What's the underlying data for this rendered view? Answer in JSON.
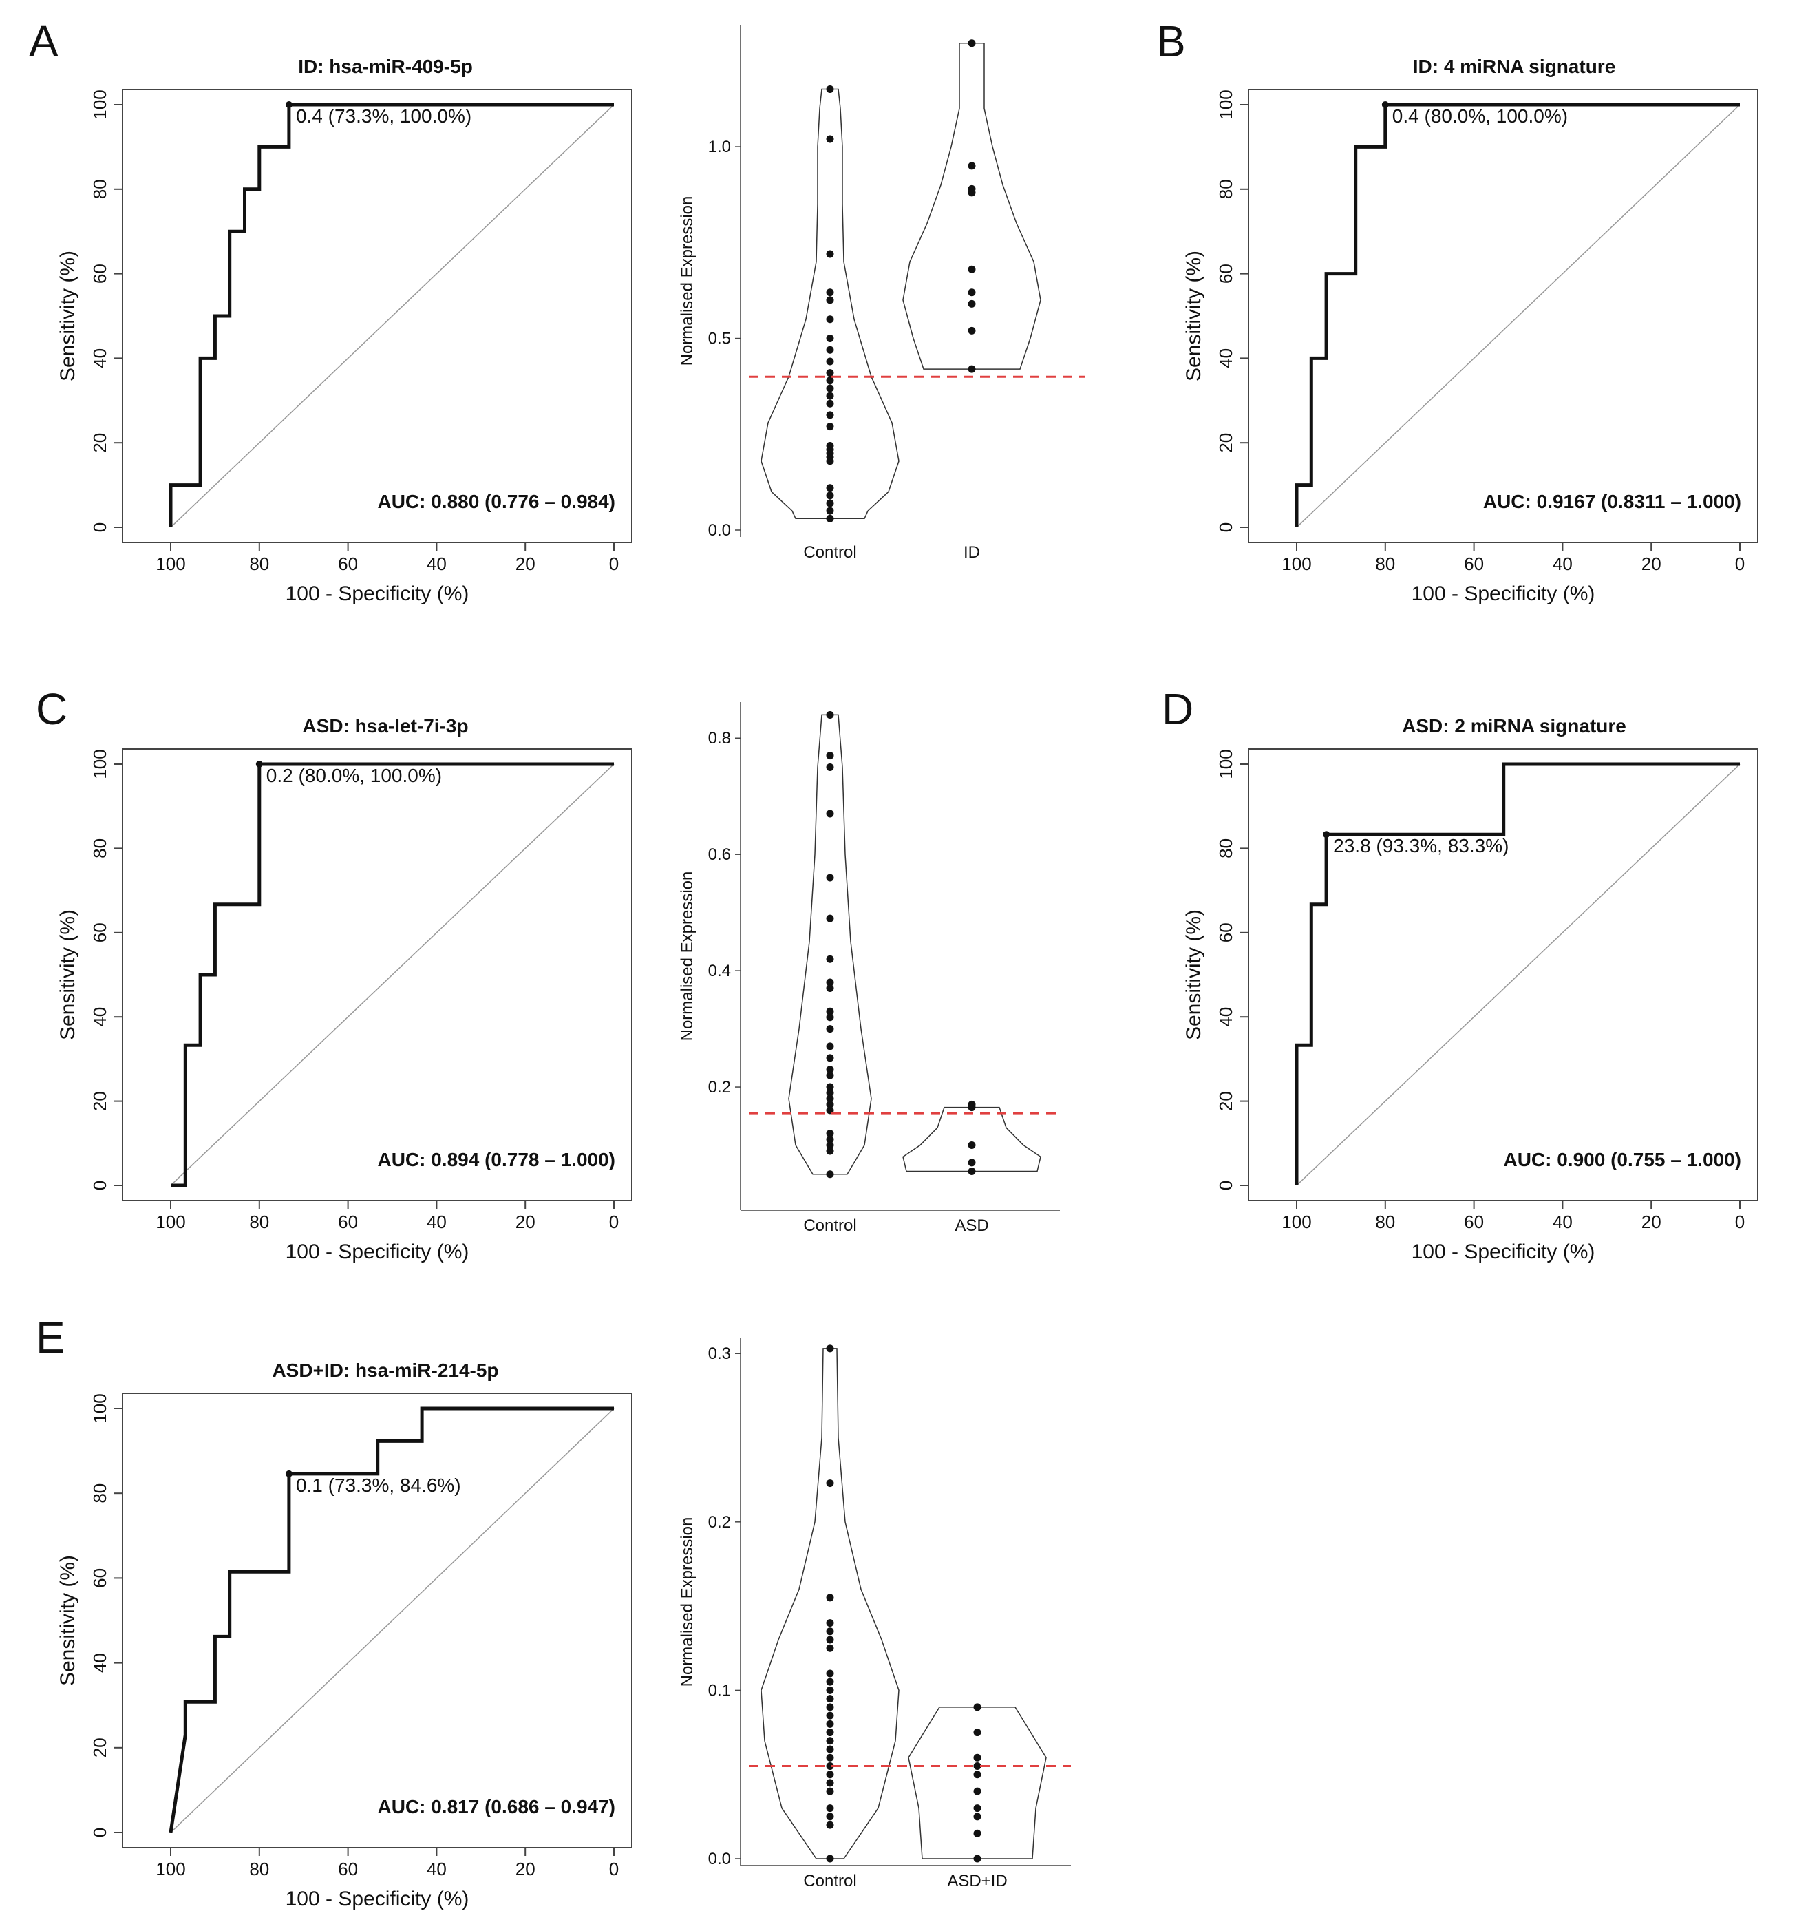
{
  "colors": {
    "ink": "#111111",
    "diag": "#999999",
    "threshold": "#e04040",
    "violin": "#333333",
    "axis": "#444444"
  },
  "roc_axis": {
    "xlabel": "100 - Specificity (%)",
    "ylabel": "Sensitivity (%)",
    "xticks": [
      "100",
      "80",
      "60",
      "40",
      "20",
      "0"
    ],
    "yticks": [
      "0",
      "20",
      "40",
      "60",
      "80",
      "100"
    ]
  },
  "violin_axis": {
    "ylabel": "Normalised Expression"
  },
  "chart_data": [
    {
      "panel": "A",
      "type": "line",
      "chart": "roc",
      "title": "ID: hsa-miR-409-5p",
      "auc": "AUC: 0.880 (0.776 – 0.984)",
      "annotation": "0.4 (73.3%, 100.0%)",
      "point": [
        73.3,
        100
      ],
      "curve": [
        [
          100,
          0
        ],
        [
          100,
          10
        ],
        [
          93.3,
          10
        ],
        [
          93.3,
          40
        ],
        [
          90,
          40
        ],
        [
          90,
          50
        ],
        [
          86.7,
          50
        ],
        [
          86.7,
          70
        ],
        [
          83.3,
          70
        ],
        [
          83.3,
          80
        ],
        [
          80,
          80
        ],
        [
          80,
          90
        ],
        [
          73.3,
          90
        ],
        [
          73.3,
          100
        ],
        [
          0,
          100
        ]
      ]
    },
    {
      "panel": "A",
      "type": "scatter",
      "chart": "violin",
      "categories": [
        "Control",
        "ID"
      ],
      "ylim": [
        0,
        1.3
      ],
      "yticks": [
        "0.0",
        "0.5",
        "1.0"
      ],
      "ytick_values": [
        0,
        0.5,
        1.0
      ],
      "threshold": 0.4,
      "groups": [
        {
          "name": "Control",
          "points": [
            1.15,
            1.02,
            0.72,
            0.62,
            0.6,
            0.55,
            0.5,
            0.47,
            0.44,
            0.41,
            0.39,
            0.37,
            0.35,
            0.33,
            0.3,
            0.27,
            0.22,
            0.21,
            0.2,
            0.19,
            0.18,
            0.11,
            0.09,
            0.07,
            0.05,
            0.03
          ],
          "violin": [
            [
              0.03,
              0.5
            ],
            [
              0.05,
              0.55
            ],
            [
              0.1,
              0.85
            ],
            [
              0.18,
              1.0
            ],
            [
              0.28,
              0.9
            ],
            [
              0.4,
              0.6
            ],
            [
              0.55,
              0.35
            ],
            [
              0.7,
              0.2
            ],
            [
              0.85,
              0.18
            ],
            [
              1.0,
              0.18
            ],
            [
              1.1,
              0.15
            ],
            [
              1.15,
              0.12
            ]
          ]
        },
        {
          "name": "ID",
          "points": [
            1.27,
            0.95,
            0.89,
            0.88,
            0.68,
            0.62,
            0.59,
            0.52,
            0.42
          ],
          "violin": [
            [
              0.42,
              0.7
            ],
            [
              0.5,
              0.85
            ],
            [
              0.6,
              1.0
            ],
            [
              0.7,
              0.9
            ],
            [
              0.8,
              0.65
            ],
            [
              0.9,
              0.45
            ],
            [
              1.0,
              0.3
            ],
            [
              1.1,
              0.18
            ],
            [
              1.2,
              0.18
            ],
            [
              1.27,
              0.18
            ]
          ]
        }
      ]
    },
    {
      "panel": "B",
      "type": "line",
      "chart": "roc",
      "title": "ID: 4 miRNA signature",
      "auc": "AUC: 0.9167 (0.8311 – 1.000)",
      "annotation": "0.4 (80.0%, 100.0%)",
      "point": [
        80,
        100
      ],
      "curve": [
        [
          100,
          0
        ],
        [
          100,
          10
        ],
        [
          96.7,
          10
        ],
        [
          96.7,
          40
        ],
        [
          93.3,
          40
        ],
        [
          93.3,
          60
        ],
        [
          86.7,
          60
        ],
        [
          86.7,
          90
        ],
        [
          80,
          90
        ],
        [
          80,
          100
        ],
        [
          0,
          100
        ]
      ]
    },
    {
      "panel": "C",
      "type": "line",
      "chart": "roc",
      "title": "ASD: hsa-let-7i-3p",
      "auc": "AUC: 0.894 (0.778 – 1.000)",
      "annotation": "0.2 (80.0%, 100.0%)",
      "point": [
        80,
        100
      ],
      "curve": [
        [
          100,
          0
        ],
        [
          96.7,
          0
        ],
        [
          96.7,
          33.3
        ],
        [
          93.3,
          33.3
        ],
        [
          93.3,
          50
        ],
        [
          90,
          50
        ],
        [
          90,
          66.7
        ],
        [
          80,
          66.7
        ],
        [
          80,
          100
        ],
        [
          0,
          100
        ]
      ]
    },
    {
      "panel": "C",
      "type": "scatter",
      "chart": "violin",
      "categories": [
        "Control",
        "ASD"
      ],
      "ylim": [
        0.0,
        0.85
      ],
      "yticks": [
        "0.2",
        "0.4",
        "0.6",
        "0.8"
      ],
      "ytick_values": [
        0.2,
        0.4,
        0.6,
        0.8
      ],
      "threshold": 0.155,
      "groups": [
        {
          "name": "Control",
          "points": [
            0.84,
            0.77,
            0.75,
            0.67,
            0.56,
            0.49,
            0.42,
            0.38,
            0.37,
            0.33,
            0.32,
            0.3,
            0.27,
            0.25,
            0.23,
            0.22,
            0.2,
            0.19,
            0.18,
            0.17,
            0.16,
            0.12,
            0.11,
            0.1,
            0.09,
            0.05
          ],
          "violin": [
            [
              0.05,
              0.25
            ],
            [
              0.1,
              0.5
            ],
            [
              0.18,
              0.6
            ],
            [
              0.3,
              0.45
            ],
            [
              0.45,
              0.3
            ],
            [
              0.6,
              0.22
            ],
            [
              0.75,
              0.18
            ],
            [
              0.84,
              0.12
            ]
          ]
        },
        {
          "name": "ASD",
          "points": [
            0.17,
            0.165,
            0.1,
            0.07,
            0.055
          ],
          "violin": [
            [
              0.055,
              0.95
            ],
            [
              0.08,
              1.0
            ],
            [
              0.1,
              0.75
            ],
            [
              0.13,
              0.5
            ],
            [
              0.165,
              0.4
            ]
          ]
        }
      ]
    },
    {
      "panel": "D",
      "type": "line",
      "chart": "roc",
      "title": "ASD: 2 miRNA signature",
      "auc": "AUC: 0.900 (0.755 – 1.000)",
      "annotation": "23.8 (93.3%, 83.3%)",
      "point": [
        93.3,
        83.3
      ],
      "curve": [
        [
          100,
          0
        ],
        [
          100,
          33.3
        ],
        [
          96.7,
          33.3
        ],
        [
          96.7,
          66.7
        ],
        [
          93.3,
          66.7
        ],
        [
          93.3,
          83.3
        ],
        [
          53.3,
          83.3
        ],
        [
          53.3,
          100
        ],
        [
          0,
          100
        ]
      ]
    },
    {
      "panel": "E",
      "type": "line",
      "chart": "roc",
      "title": "ASD+ID: hsa-miR-214-5p",
      "auc": "AUC: 0.817 (0.686 – 0.947)",
      "annotation": "0.1 (73.3%, 84.6%)",
      "point": [
        73.3,
        84.6
      ],
      "curve": [
        [
          100,
          0
        ],
        [
          96.7,
          23
        ],
        [
          96.7,
          30.8
        ],
        [
          90,
          30.8
        ],
        [
          90,
          46.2
        ],
        [
          86.7,
          46.2
        ],
        [
          86.7,
          61.5
        ],
        [
          73.3,
          61.5
        ],
        [
          73.3,
          84.6
        ],
        [
          53.3,
          84.6
        ],
        [
          53.3,
          92.3
        ],
        [
          43.3,
          92.3
        ],
        [
          43.3,
          100
        ],
        [
          0,
          100
        ]
      ]
    },
    {
      "panel": "E",
      "type": "scatter",
      "chart": "violin",
      "categories": [
        "Control",
        "ASD+ID"
      ],
      "ylim": [
        0,
        0.305
      ],
      "yticks": [
        "0.0",
        "0.1",
        "0.2",
        "0.3"
      ],
      "ytick_values": [
        0,
        0.1,
        0.2,
        0.3
      ],
      "threshold": 0.055,
      "groups": [
        {
          "name": "Control",
          "points": [
            0.303,
            0.223,
            0.155,
            0.14,
            0.135,
            0.13,
            0.125,
            0.11,
            0.105,
            0.1,
            0.095,
            0.09,
            0.085,
            0.08,
            0.075,
            0.07,
            0.065,
            0.06,
            0.055,
            0.05,
            0.045,
            0.04,
            0.03,
            0.025,
            0.02,
            0.0
          ],
          "violin": [
            [
              0.0,
              0.2
            ],
            [
              0.03,
              0.7
            ],
            [
              0.07,
              0.95
            ],
            [
              0.1,
              1.0
            ],
            [
              0.13,
              0.75
            ],
            [
              0.16,
              0.45
            ],
            [
              0.2,
              0.22
            ],
            [
              0.25,
              0.12
            ],
            [
              0.303,
              0.1
            ]
          ]
        },
        {
          "name": "ASD+ID",
          "points": [
            0.09,
            0.075,
            0.06,
            0.055,
            0.05,
            0.04,
            0.03,
            0.025,
            0.015,
            0.0
          ],
          "violin": [
            [
              0.0,
              0.8
            ],
            [
              0.03,
              0.85
            ],
            [
              0.06,
              1.0
            ],
            [
              0.09,
              0.55
            ]
          ]
        }
      ]
    }
  ]
}
